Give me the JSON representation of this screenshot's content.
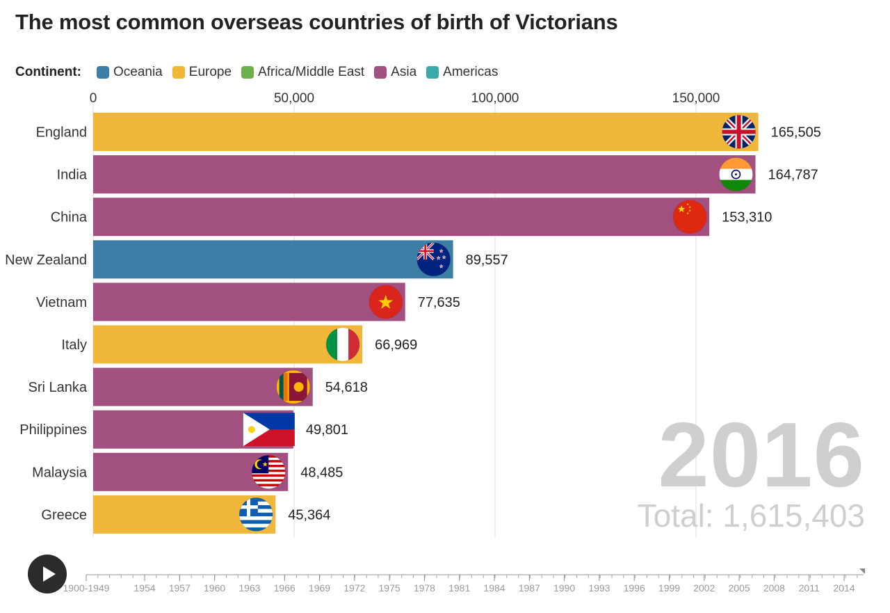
{
  "title": "The most common overseas countries of birth of Victorians",
  "legend": {
    "title": "Continent:",
    "items": [
      {
        "label": "Oceania",
        "color": "#3d7ea6"
      },
      {
        "label": "Europe",
        "color": "#f0b73a"
      },
      {
        "label": "Africa/Middle East",
        "color": "#6fae4c"
      },
      {
        "label": "Asia",
        "color": "#a2507f"
      },
      {
        "label": "Americas",
        "color": "#3aa9a9"
      }
    ]
  },
  "year": "2016",
  "total_label": "Total: 1,615,403",
  "chart_data": {
    "type": "bar",
    "orientation": "horizontal",
    "title": "The most common overseas countries of birth of Victorians",
    "categories": [
      "England",
      "India",
      "China",
      "New Zealand",
      "Vietnam",
      "Italy",
      "Sri Lanka",
      "Philippines",
      "Malaysia",
      "Greece"
    ],
    "values": [
      165505,
      164787,
      153310,
      89557,
      77635,
      66969,
      54618,
      49801,
      48485,
      45364
    ],
    "value_labels": [
      "165,505",
      "164,787",
      "153,310",
      "89,557",
      "77,635",
      "66,969",
      "54,618",
      "49,801",
      "48,485",
      "45,364"
    ],
    "continents": [
      "Europe",
      "Asia",
      "Asia",
      "Oceania",
      "Asia",
      "Europe",
      "Asia",
      "Asia",
      "Asia",
      "Europe"
    ],
    "flags": [
      "england-flag",
      "india-flag",
      "china-flag",
      "new-zealand-flag",
      "vietnam-flag",
      "italy-flag",
      "sri-lanka-flag",
      "philippines-flag",
      "malaysia-flag",
      "greece-flag"
    ],
    "xlim": [
      0,
      190000
    ],
    "x_ticks": [
      0,
      50000,
      100000,
      150000
    ],
    "x_tick_labels": [
      "0",
      "50,000",
      "100,000",
      "150,000"
    ],
    "grid": true
  },
  "timeline": {
    "labels": [
      "1900-1949",
      "1954",
      "1957",
      "1960",
      "1963",
      "1966",
      "1969",
      "1972",
      "1975",
      "1978",
      "1981",
      "1984",
      "1987",
      "1990",
      "1993",
      "1996",
      "1999",
      "2002",
      "2005",
      "2008",
      "2011",
      "2014"
    ],
    "current": "2016"
  }
}
